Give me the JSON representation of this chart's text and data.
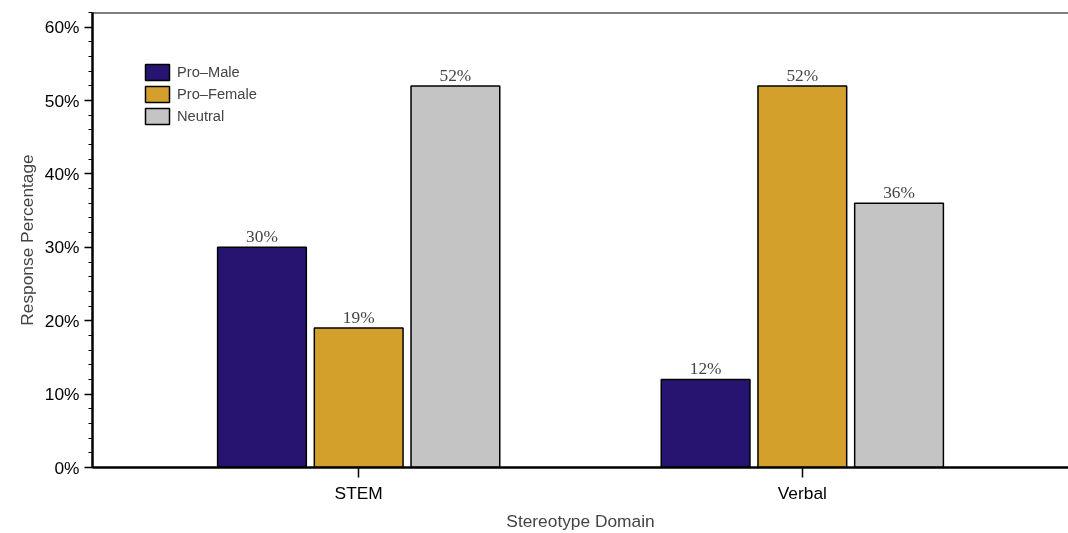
{
  "chart_data": {
    "type": "bar",
    "xlabel": "Stereotype Domain",
    "ylabel": "Response Percentage",
    "categories": [
      "STEM",
      "Verbal"
    ],
    "series": [
      {
        "name": "Pro–Male",
        "color": "#271470",
        "values": [
          30,
          12
        ],
        "value_labels": [
          "30%",
          "12%"
        ]
      },
      {
        "name": "Pro–Female",
        "color": "#d4a02c",
        "values": [
          19,
          52
        ],
        "value_labels": [
          "19%",
          "52%"
        ]
      },
      {
        "name": "Neutral",
        "color": "#c4c4c4",
        "values": [
          52,
          36
        ],
        "value_labels": [
          "52%",
          "36%"
        ]
      }
    ],
    "ylim": [
      0,
      62
    ],
    "yticks": [
      {
        "value": 0,
        "label": "0%"
      },
      {
        "value": 10,
        "label": "10%"
      },
      {
        "value": 20,
        "label": "20%"
      },
      {
        "value": 30,
        "label": "30%"
      },
      {
        "value": 40,
        "label": "40%"
      },
      {
        "value": 50,
        "label": "50%"
      },
      {
        "value": 60,
        "label": "60%"
      }
    ],
    "grid": false,
    "legend": "top left"
  }
}
